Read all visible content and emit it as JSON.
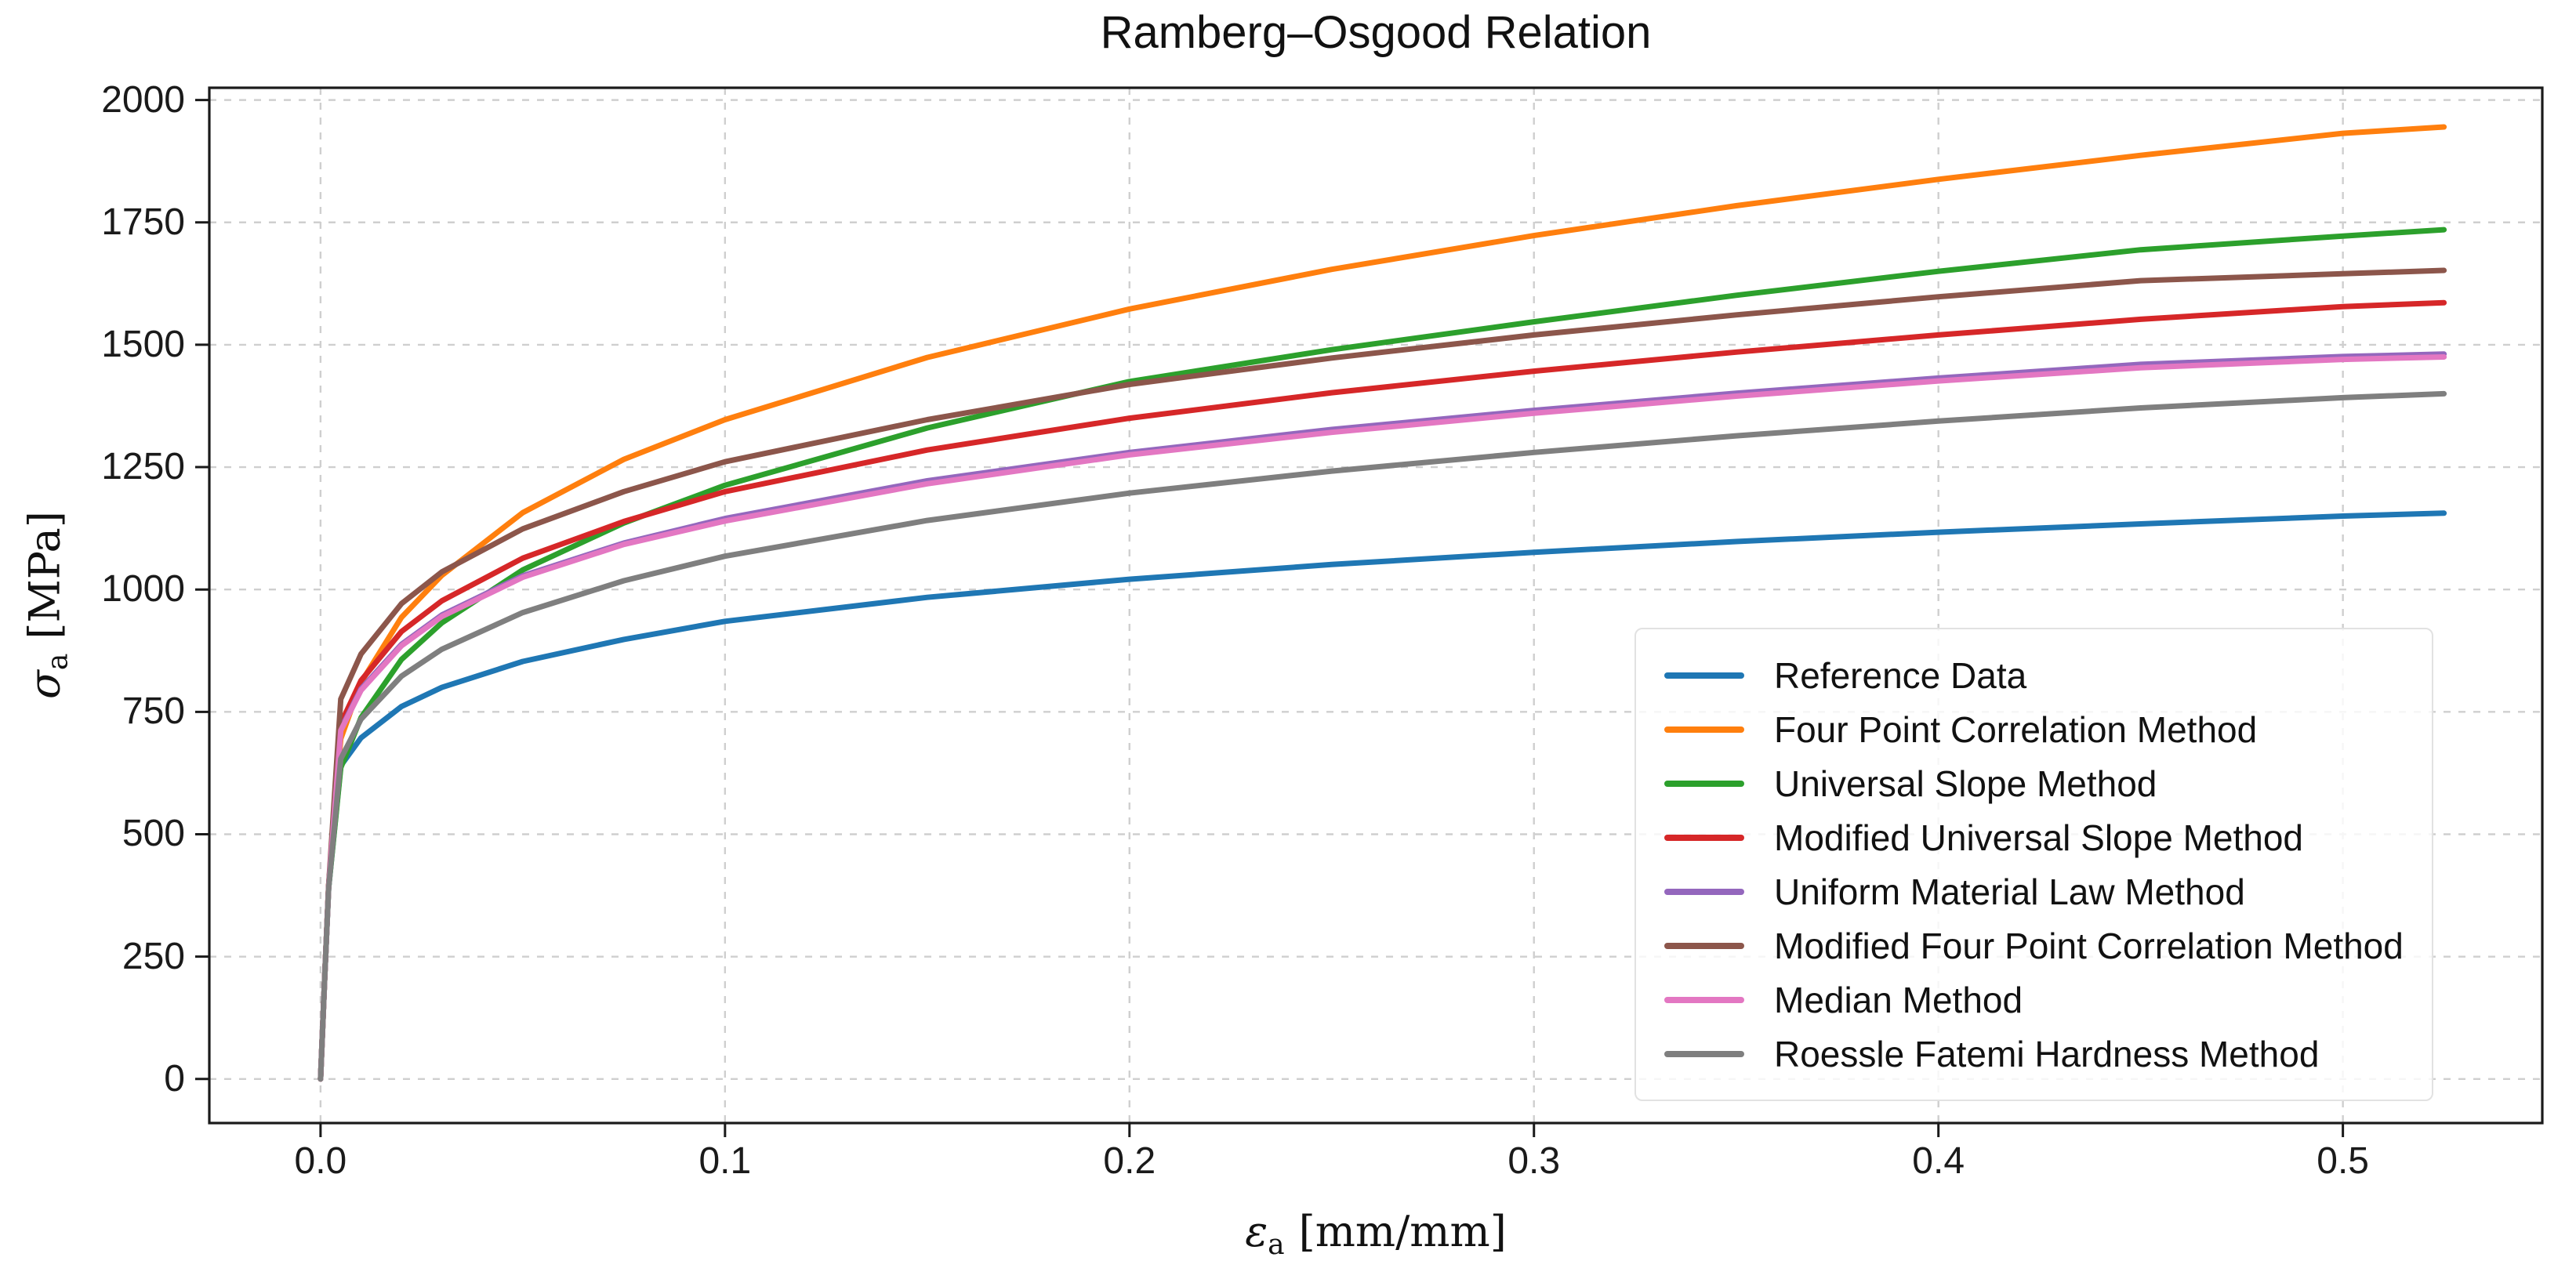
{
  "title": "Ramberg–Osgood Relation",
  "axes": {
    "x_label": {
      "symbol": "ε",
      "sub": "a",
      "unit": "[mm/mm]"
    },
    "y_label": {
      "symbol": "σ",
      "sub": "a",
      "unit": "[MPa]"
    },
    "x_tick_labels": [
      "0.0",
      "0.1",
      "0.2",
      "0.3",
      "0.4",
      "0.5"
    ],
    "x_tick_values": [
      0,
      0.1,
      0.2,
      0.3,
      0.4,
      0.5
    ],
    "y_tick_labels": [
      "0",
      "250",
      "500",
      "750",
      "1000",
      "1250",
      "1500",
      "1750",
      "2000"
    ],
    "y_tick_values": [
      0,
      250,
      500,
      750,
      1000,
      1250,
      1500,
      1750,
      2000
    ]
  },
  "style_colors": {
    "grid": "#cfcfcf",
    "spine": "#1a1a1a",
    "tick": "#1a1a1a"
  },
  "chart_data": {
    "type": "line",
    "title": "Ramberg–Osgood Relation",
    "xlabel": "ε_a [mm/mm]",
    "ylabel": "σ_a [MPa]",
    "xlim": [
      -0.0275,
      0.5493
    ],
    "ylim": [
      -90,
      2025
    ],
    "grid": true,
    "grid_style": "dashed",
    "legend_position": "center right",
    "x": [
      0,
      0.001,
      0.002,
      0.005,
      0.01,
      0.02,
      0.03,
      0.05,
      0.075,
      0.1,
      0.15,
      0.2,
      0.25,
      0.3,
      0.35,
      0.4,
      0.45,
      0.5,
      0.525
    ],
    "series": [
      {
        "name": "Reference Data",
        "color": "#1f77b4",
        "values": [
          0,
          200,
          390,
          640,
          697,
          761,
          800,
          853,
          898,
          935,
          984,
          1021,
          1051,
          1076,
          1098,
          1117,
          1134,
          1150,
          1156
        ]
      },
      {
        "name": "Four Point Correlation Method",
        "color": "#ff7f0e",
        "values": [
          0,
          200,
          395,
          695,
          810,
          943,
          1029,
          1157,
          1266,
          1347,
          1474,
          1573,
          1654,
          1723,
          1784,
          1838,
          1887,
          1932,
          1945
        ]
      },
      {
        "name": "Universal Slope Method",
        "color": "#2ca02c",
        "values": [
          0,
          200,
          390,
          636,
          738,
          857,
          932,
          1040,
          1136,
          1213,
          1330,
          1425,
          1490,
          1547,
          1601,
          1650,
          1694,
          1722,
          1735
        ]
      },
      {
        "name": "Modified Universal Slope Method",
        "color": "#d62728",
        "values": [
          0,
          200,
          393,
          726,
          814,
          914,
          977,
          1064,
          1139,
          1200,
          1285,
          1350,
          1402,
          1446,
          1485,
          1520,
          1552,
          1578,
          1586
        ]
      },
      {
        "name": "Uniform Material Law Method",
        "color": "#9467bd",
        "values": [
          0,
          200,
          392,
          715,
          797,
          888,
          948,
          1028,
          1095,
          1145,
          1222,
          1280,
          1327,
          1366,
          1401,
          1432,
          1460,
          1476,
          1481
        ]
      },
      {
        "name": "Modified Four Point Correlation Method",
        "color": "#8c564b",
        "values": [
          0,
          200,
          394,
          776,
          868,
          971,
          1036,
          1124,
          1200,
          1261,
          1347,
          1419,
          1473,
          1520,
          1561,
          1598,
          1631,
          1645,
          1652
        ]
      },
      {
        "name": "Median Method",
        "color": "#e377c2",
        "values": [
          0,
          200,
          392,
          712,
          794,
          885,
          945,
          1025,
          1092,
          1140,
          1216,
          1275,
          1321,
          1360,
          1395,
          1426,
          1453,
          1470,
          1475
        ]
      },
      {
        "name": "Roessle Fatemi Hardness Method",
        "color": "#7f7f7f",
        "values": [
          0,
          200,
          390,
          654,
          735,
          823,
          878,
          953,
          1018,
          1068,
          1141,
          1197,
          1242,
          1280,
          1314,
          1344,
          1371,
          1392,
          1400
        ]
      }
    ]
  }
}
